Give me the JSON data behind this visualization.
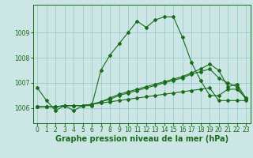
{
  "background_color": "#cce5e5",
  "grid_color": "#99cccc",
  "line_color": "#1a6b1a",
  "xlabel": "Graphe pression niveau de la mer (hPa)",
  "xlabel_fontsize": 7,
  "tick_fontsize": 5.5,
  "ylim": [
    1005.4,
    1010.1
  ],
  "xlim": [
    -0.5,
    23.5
  ],
  "yticks": [
    1006,
    1007,
    1008,
    1009
  ],
  "xticks": [
    0,
    1,
    2,
    3,
    4,
    5,
    6,
    7,
    8,
    9,
    10,
    11,
    12,
    13,
    14,
    15,
    16,
    17,
    18,
    19,
    20,
    21,
    22,
    23
  ],
  "series": [
    [
      1006.8,
      1006.3,
      1005.9,
      1006.1,
      1005.9,
      1006.1,
      1006.1,
      1007.5,
      1008.1,
      1008.55,
      1009.0,
      1009.45,
      1009.2,
      1009.5,
      1009.62,
      1009.62,
      1008.8,
      1007.8,
      1007.1,
      1006.5,
      1006.5,
      1006.75,
      1006.75,
      1006.4
    ],
    [
      1006.05,
      1006.05,
      1006.05,
      1006.1,
      1006.1,
      1006.1,
      1006.15,
      1006.2,
      1006.25,
      1006.3,
      1006.35,
      1006.4,
      1006.45,
      1006.5,
      1006.55,
      1006.6,
      1006.65,
      1006.7,
      1006.75,
      1006.8,
      1006.3,
      1006.3,
      1006.3,
      1006.3
    ],
    [
      1006.05,
      1006.05,
      1006.05,
      1006.1,
      1006.1,
      1006.1,
      1006.15,
      1006.25,
      1006.35,
      1006.5,
      1006.6,
      1006.7,
      1006.8,
      1006.9,
      1007.0,
      1007.1,
      1007.2,
      1007.35,
      1007.45,
      1007.55,
      1007.2,
      1007.0,
      1006.85,
      1006.35
    ],
    [
      1006.05,
      1006.05,
      1006.05,
      1006.1,
      1006.1,
      1006.1,
      1006.15,
      1006.25,
      1006.4,
      1006.55,
      1006.65,
      1006.75,
      1006.85,
      1006.95,
      1007.05,
      1007.15,
      1007.25,
      1007.4,
      1007.55,
      1007.75,
      1007.5,
      1006.85,
      1006.95,
      1006.4
    ]
  ]
}
